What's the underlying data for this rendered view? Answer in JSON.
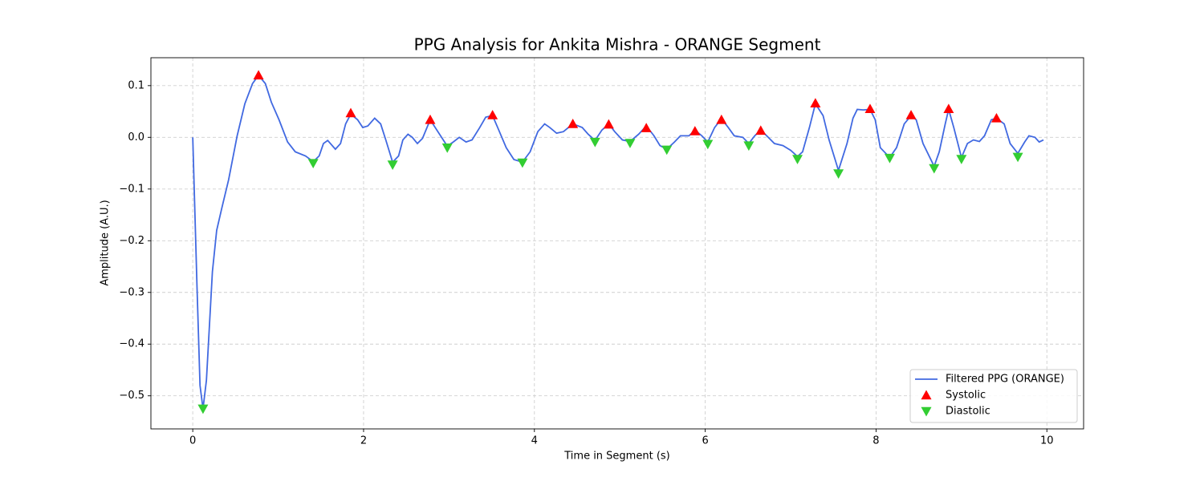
{
  "chart_data": {
    "type": "line",
    "title": "PPG Analysis for Ankita Mishra - ORANGE Segment",
    "x_label": "Time in Segment (s)",
    "y_label": "Amplitude (A.U.)",
    "xlim": [
      -0.49,
      10.43
    ],
    "ylim": [
      -0.564,
      0.154
    ],
    "xticks": [
      0,
      2,
      4,
      6,
      8,
      10
    ],
    "yticks": [
      {
        "value": -0.5,
        "label": "−0.5"
      },
      {
        "value": -0.4,
        "label": "−0.4"
      },
      {
        "value": -0.3,
        "label": "−0.3"
      },
      {
        "value": -0.2,
        "label": "−0.2"
      },
      {
        "value": -0.1,
        "label": "−0.1"
      },
      {
        "value": 0,
        "label": "0.0"
      },
      0.1
    ],
    "grid": true,
    "legend": "lower right",
    "series": [
      {
        "name": "Filtered PPG (ORANGE)",
        "color": "#4169e1",
        "marker": "line",
        "x": [
          0,
          0.05,
          0.085,
          0.12,
          0.16,
          0.23,
          0.28,
          0.34,
          0.42,
          0.52,
          0.61,
          0.7,
          0.77,
          0.85,
          0.92,
          1.01,
          1.11,
          1.2,
          1.32,
          1.41,
          1.48,
          1.53,
          1.58,
          1.67,
          1.73,
          1.79,
          1.85,
          1.93,
          1.99,
          2.05,
          2.13,
          2.2,
          2.26,
          2.34,
          2.41,
          2.46,
          2.52,
          2.57,
          2.63,
          2.69,
          2.78,
          2.87,
          2.98,
          3.05,
          3.12,
          3.2,
          3.27,
          3.36,
          3.43,
          3.51,
          3.57,
          3.67,
          3.76,
          3.86,
          3.95,
          4.04,
          4.12,
          4.18,
          4.26,
          4.34,
          4.45,
          4.56,
          4.63,
          4.71,
          4.79,
          4.87,
          4.94,
          5.03,
          5.12,
          5.22,
          5.31,
          5.4,
          5.47,
          5.55,
          5.64,
          5.71,
          5.81,
          5.88,
          5.96,
          6.03,
          6.11,
          6.19,
          6.27,
          6.34,
          6.44,
          6.51,
          6.58,
          6.65,
          6.72,
          6.81,
          6.91,
          7.0,
          7.08,
          7.14,
          7.22,
          7.29,
          7.38,
          7.45,
          7.56,
          7.66,
          7.73,
          7.78,
          7.85,
          7.93,
          7.99,
          8.05,
          8.16,
          8.24,
          8.33,
          8.41,
          8.47,
          8.55,
          8.68,
          8.74,
          8.81,
          8.85,
          8.91,
          9.0,
          9.07,
          9.14,
          9.21,
          9.27,
          9.35,
          9.41,
          9.5,
          9.57,
          9.66,
          9.74,
          9.79,
          9.86,
          9.91,
          9.96
        ],
        "values": [
          0,
          -0.29,
          -0.48,
          -0.525,
          -0.47,
          -0.26,
          -0.18,
          -0.137,
          -0.082,
          0.003,
          0.065,
          0.104,
          0.12,
          0.104,
          0.068,
          0.034,
          -0.009,
          -0.028,
          -0.036,
          -0.047,
          -0.036,
          -0.012,
          -0.006,
          -0.023,
          -0.012,
          0.026,
          0.045,
          0.034,
          0.019,
          0.022,
          0.037,
          0.026,
          -0.005,
          -0.048,
          -0.036,
          -0.005,
          0.006,
          0,
          -0.012,
          -0.002,
          0.034,
          0.011,
          -0.017,
          -0.009,
          0,
          -0.009,
          -0.005,
          0.019,
          0.039,
          0.042,
          0.019,
          -0.02,
          -0.043,
          -0.048,
          -0.028,
          0.011,
          0.026,
          0.019,
          0.008,
          0.011,
          0.026,
          0.019,
          0.006,
          -0.006,
          0.014,
          0.026,
          0.011,
          -0.005,
          -0.008,
          0.006,
          0.022,
          0.003,
          -0.016,
          -0.023,
          -0.009,
          0.003,
          0.003,
          0.014,
          0.003,
          -0.009,
          0.019,
          0.036,
          0.019,
          0.003,
          0,
          -0.012,
          0.003,
          0.014,
          0.003,
          -0.012,
          -0.016,
          -0.025,
          -0.037,
          -0.028,
          0.019,
          0.065,
          0.042,
          -0.005,
          -0.064,
          -0.012,
          0.037,
          0.054,
          0.053,
          0.054,
          0.034,
          -0.02,
          -0.039,
          -0.02,
          0.026,
          0.042,
          0.034,
          -0.012,
          -0.056,
          -0.028,
          0.026,
          0.054,
          0.019,
          -0.039,
          -0.012,
          -0.005,
          -0.008,
          0.003,
          0.034,
          0.037,
          0.026,
          -0.012,
          -0.031,
          -0.009,
          0.003,
          0,
          -0.009,
          -0.005
        ]
      },
      {
        "name": "Systolic",
        "color": "#ff0000",
        "marker": "triangle-up",
        "x": [
          0.77,
          1.85,
          2.78,
          3.51,
          4.45,
          4.87,
          5.31,
          5.88,
          6.19,
          6.65,
          7.29,
          7.93,
          8.41,
          8.85,
          9.41
        ],
        "values": [
          0.12,
          0.047,
          0.034,
          0.043,
          0.026,
          0.025,
          0.018,
          0.012,
          0.034,
          0.013,
          0.066,
          0.055,
          0.043,
          0.055,
          0.037
        ]
      },
      {
        "name": "Diastolic",
        "color": "#32cd32",
        "marker": "triangle-down",
        "x": [
          0.12,
          1.41,
          2.34,
          2.98,
          3.86,
          4.71,
          5.12,
          5.55,
          6.03,
          6.51,
          7.08,
          7.56,
          8.16,
          8.68,
          9.0,
          9.66
        ],
        "values": [
          -0.525,
          -0.05,
          -0.053,
          -0.02,
          -0.049,
          -0.009,
          -0.011,
          -0.024,
          -0.013,
          -0.016,
          -0.042,
          -0.07,
          -0.04,
          -0.06,
          -0.042,
          -0.038
        ]
      }
    ]
  }
}
